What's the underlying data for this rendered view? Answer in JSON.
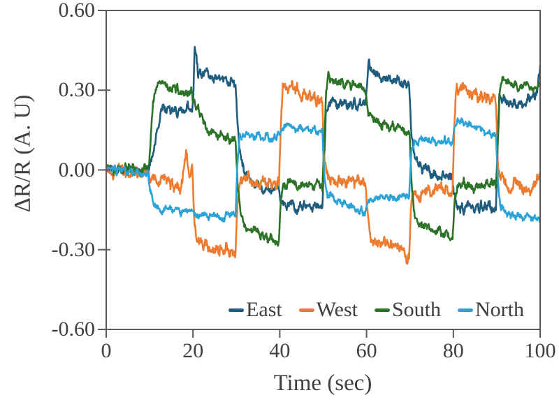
{
  "colors": {
    "frame": "#595959",
    "tick": "#595959",
    "text": "#3f3f3f",
    "background": "#ffffff"
  },
  "chart_data": {
    "type": "line",
    "title": "",
    "xlabel": "Time (sec)",
    "ylabel": "ΔR/R (A. U)",
    "xlim": [
      0,
      100
    ],
    "ylim": [
      -0.6,
      0.6
    ],
    "xticks": [
      0,
      20,
      40,
      60,
      80,
      100
    ],
    "xtick_labels": [
      "0",
      "20",
      "40",
      "60",
      "80",
      "100"
    ],
    "yticks": [
      0.6,
      0.3,
      0.0,
      -0.3,
      -0.6
    ],
    "ytick_labels": [
      "0.60",
      "0.30",
      "0.00",
      "-0.30",
      "-0.60"
    ],
    "grid": false,
    "frame": true,
    "legend_position": "bottom-inside-right",
    "noise_band": 0.02,
    "series": [
      {
        "name": "East",
        "color": "#1f5d7e",
        "noise_scale": 1.2,
        "keypoints": [
          [
            0,
            0.005
          ],
          [
            9.8,
            0.0
          ],
          [
            10.6,
            0.04
          ],
          [
            12.5,
            0.22
          ],
          [
            14,
            0.235
          ],
          [
            16.5,
            0.21
          ],
          [
            18.5,
            0.24
          ],
          [
            19.8,
            0.22
          ],
          [
            20.1,
            0.3
          ],
          [
            20.4,
            0.47
          ],
          [
            21.2,
            0.37
          ],
          [
            23,
            0.36
          ],
          [
            26,
            0.345
          ],
          [
            29.8,
            0.33
          ],
          [
            30.2,
            0.2
          ],
          [
            30.8,
            0.05
          ],
          [
            32,
            -0.02
          ],
          [
            34,
            -0.05
          ],
          [
            37,
            -0.07
          ],
          [
            39.8,
            -0.08
          ],
          [
            40.2,
            -0.12
          ],
          [
            42,
            -0.135
          ],
          [
            45,
            -0.145
          ],
          [
            48,
            -0.135
          ],
          [
            49.8,
            -0.14
          ],
          [
            50.2,
            0.05
          ],
          [
            50.6,
            0.21
          ],
          [
            51.5,
            0.26
          ],
          [
            54,
            0.245
          ],
          [
            57,
            0.25
          ],
          [
            59.8,
            0.24
          ],
          [
            60.2,
            0.32
          ],
          [
            60.5,
            0.41
          ],
          [
            61.5,
            0.37
          ],
          [
            64,
            0.35
          ],
          [
            67,
            0.335
          ],
          [
            69.8,
            0.32
          ],
          [
            70.3,
            0.16
          ],
          [
            71.2,
            0.05
          ],
          [
            72.5,
            0.01
          ],
          [
            75,
            -0.01
          ],
          [
            78,
            -0.03
          ],
          [
            79.8,
            -0.035
          ],
          [
            80.2,
            -0.1
          ],
          [
            81,
            -0.135
          ],
          [
            84,
            -0.145
          ],
          [
            87,
            -0.14
          ],
          [
            89.8,
            -0.15
          ],
          [
            90.2,
            0.1
          ],
          [
            90.6,
            0.3
          ],
          [
            91.5,
            0.26
          ],
          [
            93.5,
            0.245
          ],
          [
            96,
            0.255
          ],
          [
            98.5,
            0.27
          ],
          [
            99.4,
            0.3
          ],
          [
            100,
            0.4
          ]
        ]
      },
      {
        "name": "West",
        "color": "#ed7c31",
        "noise_scale": 1.5,
        "keypoints": [
          [
            0,
            -0.005
          ],
          [
            9.8,
            -0.01
          ],
          [
            10.4,
            -0.03
          ],
          [
            12,
            -0.05
          ],
          [
            14,
            -0.03
          ],
          [
            15.5,
            -0.06
          ],
          [
            17,
            -0.08
          ],
          [
            18,
            0.02
          ],
          [
            18.6,
            0.05
          ],
          [
            19.3,
            -0.02
          ],
          [
            19.8,
            0.0
          ],
          [
            20.3,
            -0.18
          ],
          [
            20.8,
            -0.26
          ],
          [
            22,
            -0.275
          ],
          [
            24.5,
            -0.285
          ],
          [
            27,
            -0.3
          ],
          [
            29,
            -0.315
          ],
          [
            29.8,
            -0.325
          ],
          [
            30.3,
            -0.1
          ],
          [
            31,
            -0.045
          ],
          [
            33,
            -0.03
          ],
          [
            35.5,
            -0.06
          ],
          [
            38,
            -0.04
          ],
          [
            39.8,
            -0.05
          ],
          [
            40.3,
            0.18
          ],
          [
            40.7,
            0.3
          ],
          [
            41.5,
            0.315
          ],
          [
            43.5,
            0.3
          ],
          [
            46,
            0.28
          ],
          [
            48,
            0.26
          ],
          [
            49.8,
            0.255
          ],
          [
            50.3,
            0.02
          ],
          [
            51,
            -0.03
          ],
          [
            53,
            -0.05
          ],
          [
            55,
            -0.035
          ],
          [
            57.5,
            -0.05
          ],
          [
            59.8,
            -0.04
          ],
          [
            60.3,
            -0.18
          ],
          [
            61,
            -0.26
          ],
          [
            63,
            -0.275
          ],
          [
            65.5,
            -0.285
          ],
          [
            68,
            -0.31
          ],
          [
            69.4,
            -0.33
          ],
          [
            69.8,
            -0.32
          ],
          [
            70.3,
            -0.12
          ],
          [
            71,
            -0.085
          ],
          [
            73,
            -0.095
          ],
          [
            75.5,
            -0.08
          ],
          [
            78,
            -0.07
          ],
          [
            79.8,
            -0.08
          ],
          [
            80.3,
            0.18
          ],
          [
            80.7,
            0.295
          ],
          [
            82,
            0.305
          ],
          [
            84.5,
            0.29
          ],
          [
            87,
            0.275
          ],
          [
            89,
            0.265
          ],
          [
            89.8,
            0.26
          ],
          [
            90.3,
            0.02
          ],
          [
            91,
            -0.04
          ],
          [
            93,
            -0.065
          ],
          [
            94.5,
            -0.05
          ],
          [
            96.5,
            -0.09
          ],
          [
            98,
            -0.07
          ],
          [
            99.2,
            -0.045
          ],
          [
            100,
            -0.04
          ]
        ]
      },
      {
        "name": "South",
        "color": "#2c7227",
        "noise_scale": 1.1,
        "keypoints": [
          [
            0,
            0.005
          ],
          [
            9.8,
            0.005
          ],
          [
            10.2,
            0.1
          ],
          [
            10.8,
            0.27
          ],
          [
            11.5,
            0.31
          ],
          [
            13.5,
            0.32
          ],
          [
            16,
            0.305
          ],
          [
            18.5,
            0.295
          ],
          [
            19.8,
            0.285
          ],
          [
            20.4,
            0.26
          ],
          [
            21.5,
            0.21
          ],
          [
            23,
            0.155
          ],
          [
            24.5,
            0.135
          ],
          [
            26.5,
            0.125
          ],
          [
            28.5,
            0.12
          ],
          [
            29.8,
            0.115
          ],
          [
            30.3,
            -0.05
          ],
          [
            30.9,
            -0.17
          ],
          [
            31.8,
            -0.21
          ],
          [
            33.5,
            -0.225
          ],
          [
            35.5,
            -0.24
          ],
          [
            37.5,
            -0.25
          ],
          [
            39.3,
            -0.265
          ],
          [
            39.8,
            -0.27
          ],
          [
            40.3,
            -0.12
          ],
          [
            41,
            -0.06
          ],
          [
            43,
            -0.045
          ],
          [
            45.5,
            -0.07
          ],
          [
            47.5,
            -0.055
          ],
          [
            49.8,
            -0.06
          ],
          [
            50.2,
            0.1
          ],
          [
            50.7,
            0.31
          ],
          [
            51.3,
            0.355
          ],
          [
            52.5,
            0.33
          ],
          [
            54.5,
            0.325
          ],
          [
            57,
            0.32
          ],
          [
            59.8,
            0.3
          ],
          [
            60.4,
            0.22
          ],
          [
            61.2,
            0.185
          ],
          [
            63,
            0.17
          ],
          [
            65.5,
            0.16
          ],
          [
            68,
            0.155
          ],
          [
            69.8,
            0.15
          ],
          [
            70.3,
            -0.02
          ],
          [
            70.9,
            -0.16
          ],
          [
            71.8,
            -0.195
          ],
          [
            73.5,
            -0.21
          ],
          [
            75.5,
            -0.225
          ],
          [
            77.5,
            -0.24
          ],
          [
            79.8,
            -0.255
          ],
          [
            80.3,
            -0.1
          ],
          [
            81,
            -0.05
          ],
          [
            83,
            -0.055
          ],
          [
            85.5,
            -0.07
          ],
          [
            87.5,
            -0.055
          ],
          [
            89.8,
            -0.06
          ],
          [
            90.2,
            0.1
          ],
          [
            90.7,
            0.3
          ],
          [
            91.4,
            0.335
          ],
          [
            93,
            0.32
          ],
          [
            95.5,
            0.315
          ],
          [
            98,
            0.31
          ],
          [
            100,
            0.315
          ]
        ]
      },
      {
        "name": "North",
        "color": "#2ba3d6",
        "noise_scale": 0.9,
        "keypoints": [
          [
            0,
            0.0
          ],
          [
            9.6,
            -0.01
          ],
          [
            10.3,
            -0.09
          ],
          [
            11,
            -0.14
          ],
          [
            12.5,
            -0.15
          ],
          [
            15,
            -0.15
          ],
          [
            17.5,
            -0.16
          ],
          [
            19.8,
            -0.16
          ],
          [
            20.3,
            -0.17
          ],
          [
            22.5,
            -0.17
          ],
          [
            25,
            -0.18
          ],
          [
            27.5,
            -0.175
          ],
          [
            29.8,
            -0.17
          ],
          [
            30.2,
            0.02
          ],
          [
            30.7,
            0.115
          ],
          [
            31.5,
            0.13
          ],
          [
            34,
            0.13
          ],
          [
            36.5,
            0.12
          ],
          [
            38.5,
            0.125
          ],
          [
            39.8,
            0.13
          ],
          [
            40.2,
            0.15
          ],
          [
            42,
            0.16
          ],
          [
            44.5,
            0.155
          ],
          [
            47,
            0.15
          ],
          [
            49.8,
            0.15
          ],
          [
            50.3,
            -0.02
          ],
          [
            51,
            -0.09
          ],
          [
            52.5,
            -0.115
          ],
          [
            54.5,
            -0.13
          ],
          [
            56.5,
            -0.145
          ],
          [
            58.5,
            -0.155
          ],
          [
            59.8,
            -0.155
          ],
          [
            60.3,
            -0.115
          ],
          [
            62,
            -0.1
          ],
          [
            64.5,
            -0.105
          ],
          [
            67,
            -0.11
          ],
          [
            69.8,
            -0.095
          ],
          [
            70.3,
            0.06
          ],
          [
            71,
            0.105
          ],
          [
            73,
            0.115
          ],
          [
            75.5,
            0.11
          ],
          [
            78,
            0.11
          ],
          [
            79.8,
            0.105
          ],
          [
            80.2,
            0.16
          ],
          [
            81,
            0.195
          ],
          [
            82.5,
            0.18
          ],
          [
            84.5,
            0.165
          ],
          [
            86.5,
            0.15
          ],
          [
            88.5,
            0.14
          ],
          [
            89.8,
            0.135
          ],
          [
            90.3,
            -0.05
          ],
          [
            91,
            -0.15
          ],
          [
            92.5,
            -0.165
          ],
          [
            95,
            -0.17
          ],
          [
            97,
            -0.18
          ],
          [
            99,
            -0.185
          ],
          [
            100,
            -0.19
          ]
        ]
      }
    ]
  }
}
